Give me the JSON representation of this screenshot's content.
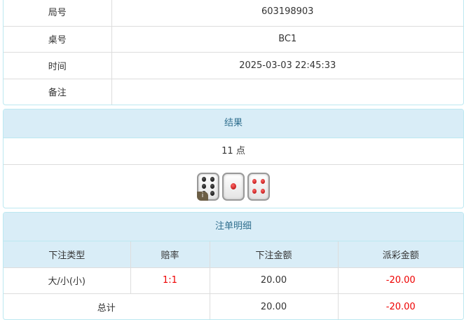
{
  "info": [
    {
      "label": "局号",
      "value": "603198903"
    },
    {
      "label": "桌号",
      "value": "BC1"
    },
    {
      "label": "时间",
      "value": "2025-03-03 22:45:33"
    },
    {
      "label": "备注",
      "value": ""
    }
  ],
  "result": {
    "title": "结果",
    "points": "11 点",
    "dice": [
      6,
      1,
      4
    ],
    "info_badge": "i"
  },
  "bets": {
    "title": "注单明细",
    "columns": [
      "下注类型",
      "赔率",
      "下注金额",
      "派彩金额"
    ],
    "rows": [
      {
        "type": "大/小(小)",
        "odds": "1:1",
        "amount": "20.00",
        "payout": "-20.00"
      }
    ],
    "total": {
      "label": "总计",
      "amount": "20.00",
      "payout": "-20.00"
    }
  },
  "colors": {
    "header_bg": "#d9edf7",
    "header_text": "#31708f",
    "negative": "#ee0000"
  }
}
